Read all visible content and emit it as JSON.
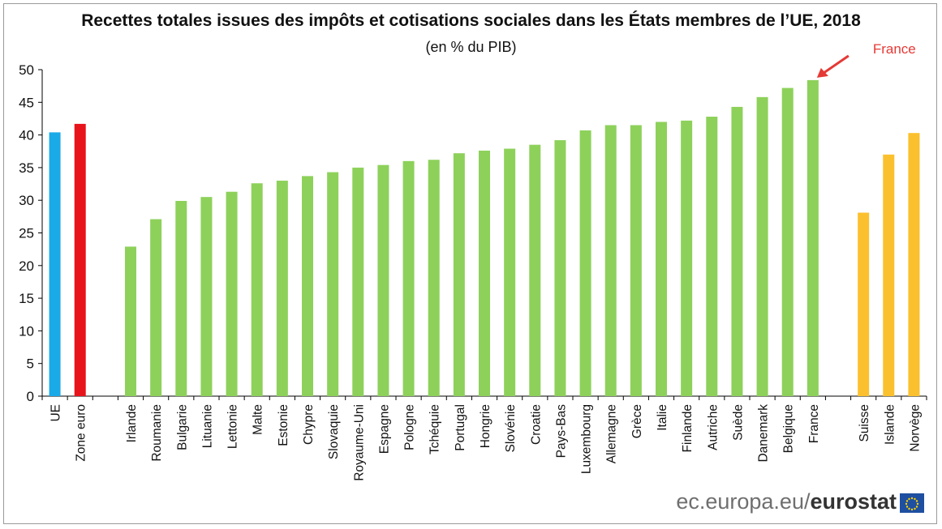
{
  "chart_data": {
    "type": "bar",
    "title": "Recettes totales issues des impôts et cotisations sociales dans les États membres de l’UE, 2018",
    "subtitle": "(en % du PIB)",
    "ylim": [
      0,
      50
    ],
    "yticks": [
      0,
      5,
      10,
      15,
      20,
      25,
      30,
      35,
      40,
      45,
      50
    ],
    "grid": false,
    "categories": [
      "UE",
      "Zone euro",
      "Irlande",
      "Roumanie",
      "Bulgarie",
      "Lituanie",
      "Lettonie",
      "Malte",
      "Estonie",
      "Chypre",
      "Slovaquie",
      "Royaume-Uni",
      "Espagne",
      "Pologne",
      "Tchéquie",
      "Portugal",
      "Hongrie",
      "Slovénie",
      "Croatie",
      "Pays-Bas",
      "Luxembourg",
      "Allemagne",
      "Grèce",
      "Italie",
      "Finlande",
      "Autriche",
      "Suède",
      "Danemark",
      "Belgique",
      "France",
      "Suisse",
      "Islande",
      "Norvège"
    ],
    "values": [
      40.4,
      41.7,
      22.9,
      27.1,
      29.9,
      30.5,
      31.3,
      32.6,
      33.0,
      33.7,
      34.3,
      35.0,
      35.4,
      36.0,
      36.2,
      37.2,
      37.6,
      37.9,
      38.5,
      39.2,
      40.7,
      41.5,
      41.5,
      42.0,
      42.2,
      42.8,
      44.3,
      45.8,
      47.2,
      48.4,
      28.1,
      37.0,
      40.3
    ],
    "groups": [
      "aggregate",
      "aggregate",
      "member",
      "member",
      "member",
      "member",
      "member",
      "member",
      "member",
      "member",
      "member",
      "member",
      "member",
      "member",
      "member",
      "member",
      "member",
      "member",
      "member",
      "member",
      "member",
      "member",
      "member",
      "member",
      "member",
      "member",
      "member",
      "member",
      "member",
      "member",
      "efta",
      "efta",
      "efta"
    ],
    "colors": {
      "UE": "#1aaae8",
      "Zone euro": "#e8141c",
      "member": "#8dd15a",
      "efta": "#fbc02d",
      "annotation": "#e53935",
      "axis": "#000000"
    },
    "annotation": {
      "text": "France",
      "target": "France"
    }
  },
  "footer": {
    "brand_prefix": "ec.europa.eu/",
    "brand_name": "eurostat"
  }
}
